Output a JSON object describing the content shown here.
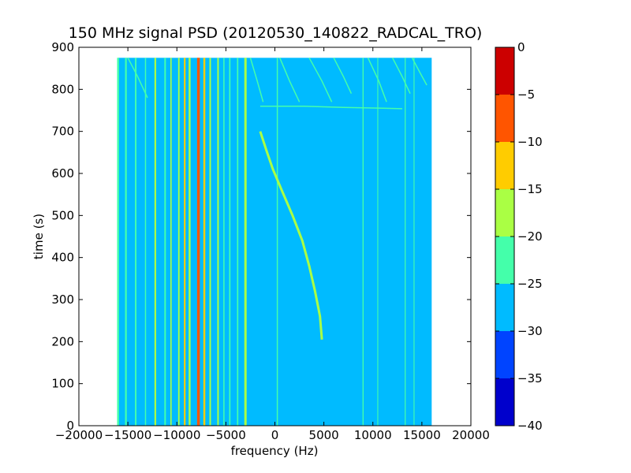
{
  "chart_data": {
    "type": "heatmap",
    "title": "150 MHz signal PSD (20120530_140822_RADCAL_TRO)",
    "xlabel": "frequency (Hz)",
    "ylabel": "time (s)",
    "xlim": [
      -20000,
      20000
    ],
    "ylim": [
      0,
      900
    ],
    "xticks": [
      "−20000",
      "−15000",
      "−10000",
      "−5000",
      "0",
      "5000",
      "10000",
      "15000",
      "20000"
    ],
    "yticks": [
      "0",
      "100",
      "200",
      "300",
      "400",
      "500",
      "600",
      "700",
      "800",
      "900"
    ],
    "data_extent": {
      "x": [
        -16000,
        16000
      ],
      "y": [
        0,
        875
      ]
    },
    "background_level": -27.5,
    "colorbar": {
      "ticks": [
        "0",
        "−5",
        "−10",
        "−15",
        "−20",
        "−25",
        "−30",
        "−35",
        "−40"
      ],
      "levels": [
        {
          "range": [
            -40,
            -35
          ],
          "color": "#0000cc"
        },
        {
          "range": [
            -35,
            -30
          ],
          "color": "#0044ff"
        },
        {
          "range": [
            -30,
            -25
          ],
          "color": "#00bbff"
        },
        {
          "range": [
            -25,
            -20
          ],
          "color": "#44ffaa"
        },
        {
          "range": [
            -20,
            -15
          ],
          "color": "#aaff44"
        },
        {
          "range": [
            -15,
            -10
          ],
          "color": "#ffcc00"
        },
        {
          "range": [
            -10,
            -5
          ],
          "color": "#ff5500"
        },
        {
          "range": [
            -5,
            0
          ],
          "color": "#cc0000"
        }
      ]
    },
    "vertical_lines": [
      {
        "x": -16000,
        "width": 200,
        "level": -22.5
      },
      {
        "x": -15200,
        "width": 180,
        "level": -22.5
      },
      {
        "x": -14200,
        "width": 160,
        "level": -22.5
      },
      {
        "x": -13200,
        "width": 120,
        "level": -22.5
      },
      {
        "x": -12200,
        "width": 180,
        "level": -17.5
      },
      {
        "x": -11200,
        "width": 160,
        "level": -22.5
      },
      {
        "x": -10600,
        "width": 130,
        "level": -17.5
      },
      {
        "x": -9800,
        "width": 150,
        "level": -17.5
      },
      {
        "x": -9200,
        "width": 170,
        "level": -12.5
      },
      {
        "x": -8700,
        "width": 200,
        "level": -17.5
      },
      {
        "x": -7800,
        "width": 280,
        "level": -7.5
      },
      {
        "x": -7200,
        "width": 200,
        "level": -12.5
      },
      {
        "x": -6600,
        "width": 160,
        "level": -17.5
      },
      {
        "x": -5800,
        "width": 160,
        "level": -17.5
      },
      {
        "x": -5200,
        "width": 120,
        "level": -22.5
      },
      {
        "x": -4600,
        "width": 140,
        "level": -22.5
      },
      {
        "x": -3800,
        "width": 140,
        "level": -22.5
      },
      {
        "x": -3000,
        "width": 240,
        "level": -17.5
      },
      {
        "x": 250,
        "width": 120,
        "level": -22.5
      },
      {
        "x": 9000,
        "width": 110,
        "level": -22.5
      },
      {
        "x": 10500,
        "width": 90,
        "level": -22.5
      },
      {
        "x": 13300,
        "width": 100,
        "level": -22.5
      },
      {
        "x": 14200,
        "width": 90,
        "level": -22.5
      }
    ],
    "curves": [
      {
        "level": -17.5,
        "points": [
          [
            -1500,
            700
          ],
          [
            -800,
            650
          ],
          [
            -200,
            610
          ],
          [
            700,
            560
          ],
          [
            1800,
            500
          ],
          [
            2800,
            440
          ],
          [
            3500,
            380
          ],
          [
            4100,
            320
          ],
          [
            4600,
            260
          ],
          [
            4800,
            205
          ]
        ]
      },
      {
        "level": -22.5,
        "points": [
          [
            -1500,
            760
          ],
          [
            3000,
            760
          ],
          [
            7000,
            757
          ],
          [
            11000,
            755
          ],
          [
            13000,
            754
          ]
        ]
      },
      {
        "level": -22.5,
        "points": [
          [
            -15000,
            875
          ],
          [
            -14000,
            830
          ],
          [
            -13000,
            780
          ]
        ]
      },
      {
        "level": -22.5,
        "points": [
          [
            -2500,
            875
          ],
          [
            -1800,
            820
          ],
          [
            -1200,
            770
          ]
        ]
      },
      {
        "level": -22.5,
        "points": [
          [
            500,
            875
          ],
          [
            1500,
            820
          ],
          [
            2500,
            770
          ]
        ]
      },
      {
        "level": -22.5,
        "points": [
          [
            3500,
            875
          ],
          [
            4800,
            820
          ],
          [
            5800,
            770
          ]
        ]
      },
      {
        "level": -22.5,
        "points": [
          [
            6000,
            875
          ],
          [
            7000,
            830
          ],
          [
            7800,
            790
          ]
        ]
      },
      {
        "level": -22.5,
        "points": [
          [
            9500,
            875
          ],
          [
            10600,
            820
          ],
          [
            11400,
            770
          ]
        ]
      },
      {
        "level": -22.5,
        "points": [
          [
            12000,
            875
          ],
          [
            13000,
            830
          ],
          [
            13800,
            790
          ]
        ]
      },
      {
        "level": -22.5,
        "points": [
          [
            14000,
            875
          ],
          [
            14800,
            840
          ],
          [
            15500,
            810
          ]
        ]
      }
    ]
  }
}
